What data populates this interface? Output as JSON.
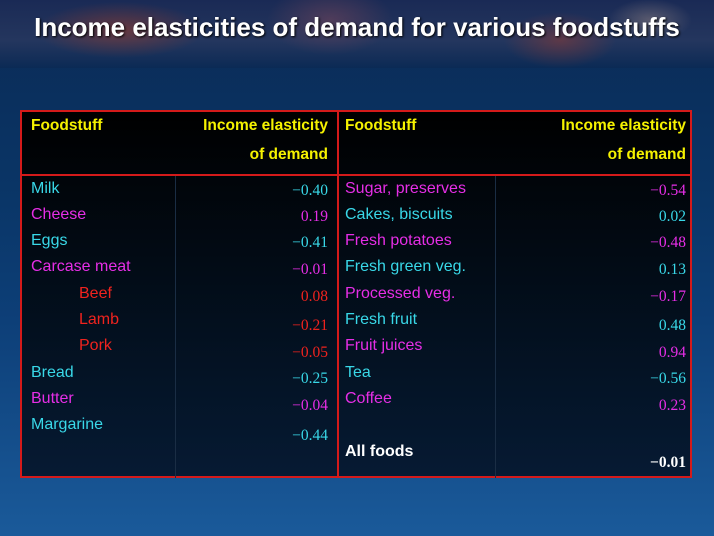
{
  "title": "Income elasticities of demand for various foodstuffs",
  "headers": {
    "left_foodstuff": "Foodstuff",
    "left_elasticity_1": "Income elasticity",
    "left_elasticity_2": "of demand",
    "right_foodstuff": "Foodstuff",
    "right_elasticity_1": "Income elasticity",
    "right_elasticity_2": "of demand"
  },
  "left_rows": [
    {
      "name": "Milk",
      "value": "−0.40"
    },
    {
      "name": "Cheese",
      "value": "0.19"
    },
    {
      "name": "Eggs",
      "value": "−0.41"
    },
    {
      "name": "Carcase meat",
      "value": "−0.01"
    },
    {
      "name": "Beef",
      "value": "0.08"
    },
    {
      "name": "Lamb",
      "value": "−0.21"
    },
    {
      "name": "Pork",
      "value": "−0.05"
    },
    {
      "name": "Bread",
      "value": "−0.25"
    },
    {
      "name": "Butter",
      "value": "−0.04"
    },
    {
      "name": "Margarine",
      "value": "−0.44"
    }
  ],
  "right_rows": [
    {
      "name": "Sugar, preserves",
      "value": "−0.54"
    },
    {
      "name": "Cakes, biscuits",
      "value": "0.02"
    },
    {
      "name": "Fresh potatoes",
      "value": "−0.48"
    },
    {
      "name": "Fresh green veg.",
      "value": "0.13"
    },
    {
      "name": "Processed veg.",
      "value": "−0.17"
    },
    {
      "name": "Fresh fruit",
      "value": "0.48"
    },
    {
      "name": "Fruit juices",
      "value": "0.94"
    },
    {
      "name": "Tea",
      "value": "−0.56"
    },
    {
      "name": "Coffee",
      "value": "0.23"
    }
  ],
  "total": {
    "name": "All foods",
    "value": "−0.01"
  },
  "colors": {
    "header": "#f5f200",
    "cyan": "#39d8e8",
    "magenta": "#e62ee6",
    "red": "#f0231e",
    "border": "#d41a1a"
  }
}
